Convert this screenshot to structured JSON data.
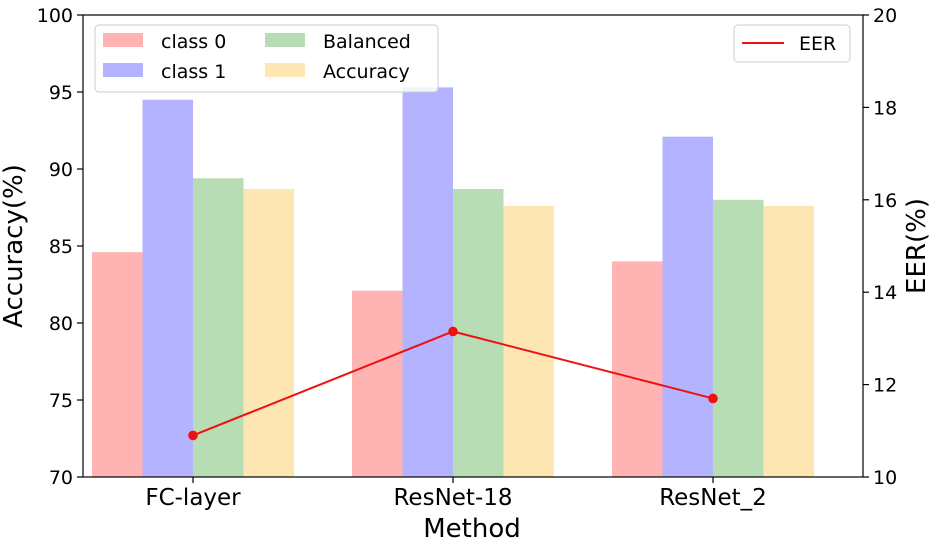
{
  "chart_data": {
    "type": "bar",
    "categories": [
      "FC-layer",
      "ResNet-18",
      "ResNet_2"
    ],
    "xlabel": "Method",
    "ylabel": "Accuracy(%)",
    "ylabel_right": "EER(%)",
    "ylim": [
      70,
      100
    ],
    "ylim_right": [
      10,
      20
    ],
    "yticks": [
      70,
      75,
      80,
      85,
      90,
      95,
      100
    ],
    "yticks_right": [
      10,
      12,
      14,
      16,
      18,
      20
    ],
    "grid": false,
    "series": [
      {
        "name": "class 0",
        "color": "#ffb3b3",
        "values": [
          84.6,
          82.1,
          84.0
        ]
      },
      {
        "name": "class 1",
        "color": "#b3b3ff",
        "values": [
          94.5,
          95.3,
          92.1
        ]
      },
      {
        "name": "Balanced",
        "color": "#b8ddb5",
        "values": [
          89.4,
          88.7,
          88.0
        ]
      },
      {
        "name": "Accuracy",
        "color": "#fee6b3",
        "values": [
          88.7,
          87.6,
          87.6
        ]
      }
    ],
    "line_series": {
      "name": "EER",
      "color": "#ee1111",
      "axis": "right",
      "values": [
        10.9,
        13.15,
        11.7
      ]
    },
    "legend_bars_placement": "top-left",
    "legend_line_placement": "top-right"
  }
}
